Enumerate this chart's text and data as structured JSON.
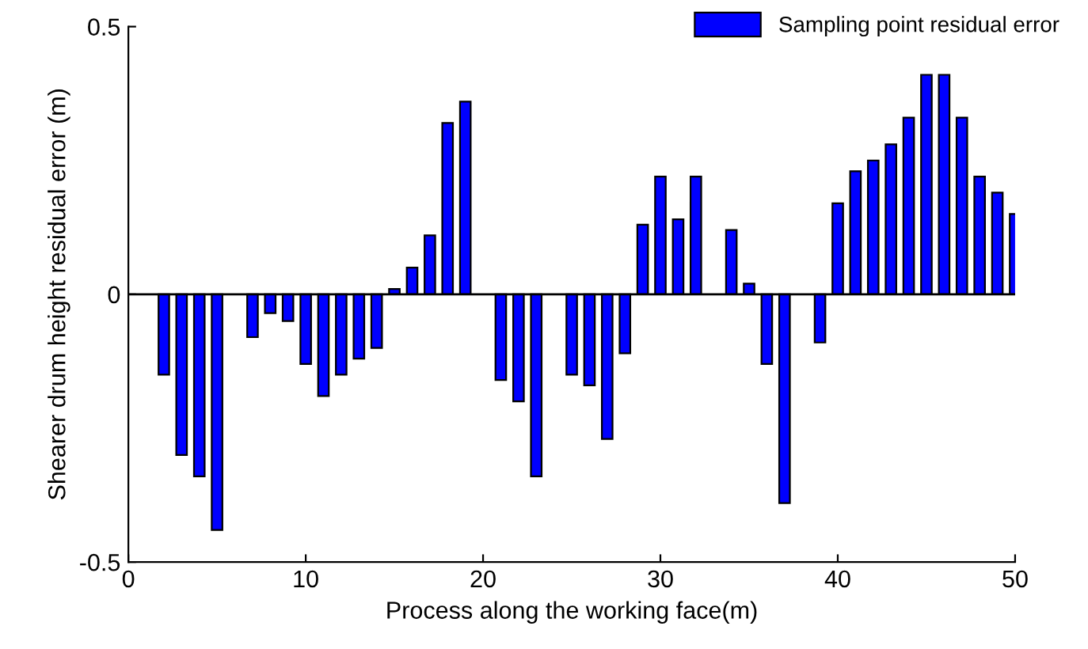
{
  "chart_data": {
    "type": "bar",
    "xlabel": "Process along the working face(m)",
    "ylabel": "Shearer drum height residual error (m)",
    "x": [
      2,
      3,
      4,
      5,
      7,
      8,
      9,
      10,
      11,
      12,
      13,
      14,
      15,
      16,
      17,
      18,
      19,
      21,
      22,
      23,
      25,
      26,
      27,
      28,
      29,
      30,
      31,
      32,
      34,
      35,
      36,
      37,
      39,
      40,
      41,
      42,
      43,
      44,
      45,
      46,
      47,
      48,
      49,
      50
    ],
    "series": [
      {
        "name": "Sampling point residual error",
        "color": "#0000ff",
        "values": [
          -0.15,
          -0.3,
          -0.34,
          -0.44,
          -0.08,
          -0.035,
          -0.05,
          -0.13,
          -0.19,
          -0.15,
          -0.12,
          -0.1,
          0.01,
          0.05,
          0.11,
          0.32,
          0.36,
          -0.16,
          -0.2,
          -0.34,
          -0.15,
          -0.17,
          -0.27,
          -0.11,
          0.13,
          0.22,
          0.14,
          0.22,
          0.12,
          0.02,
          -0.13,
          -0.39,
          -0.09,
          0.17,
          0.23,
          0.25,
          0.28,
          0.33,
          0.41,
          0.41,
          0.33,
          0.22,
          0.19,
          0.15
        ]
      }
    ],
    "xlim": [
      0,
      50
    ],
    "xticks": [
      0,
      10,
      20,
      30,
      40,
      50
    ],
    "ylim": [
      -0.5,
      0.5
    ],
    "yticks": [
      -0.5,
      0,
      0.5
    ],
    "legend": "top right",
    "ref_lines": [
      {
        "axis": "y",
        "value": 0,
        "color": "#000000"
      }
    ]
  }
}
